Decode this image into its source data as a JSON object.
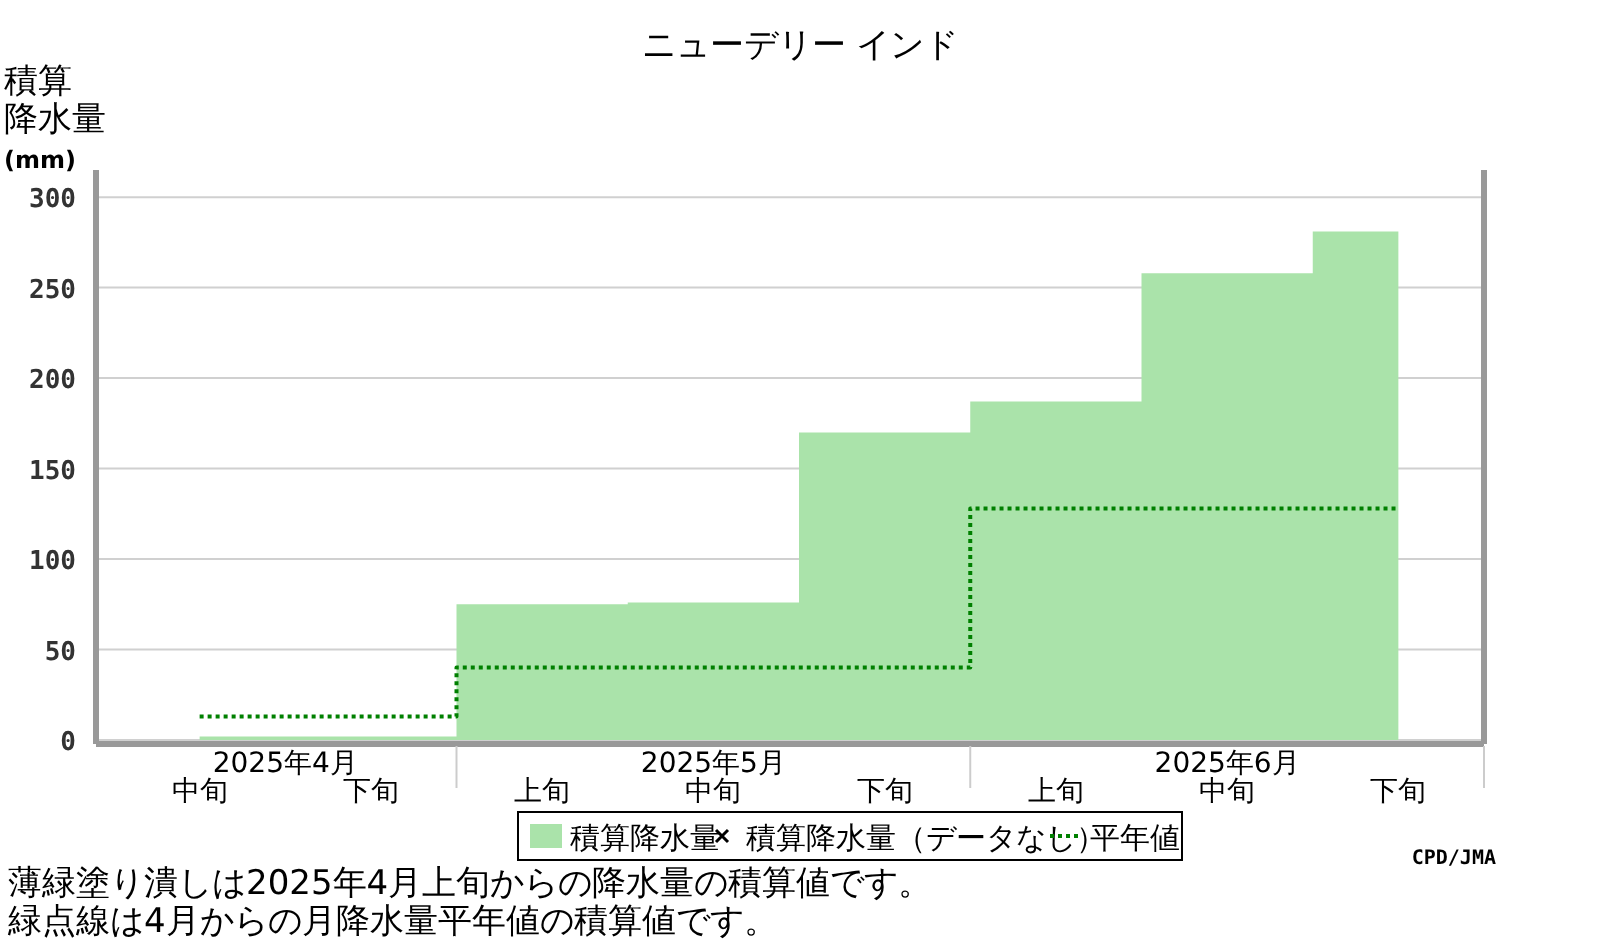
{
  "chart_data": {
    "type": "step",
    "title": "ニューデリー インド",
    "ylabel": "積算降水量(mm)",
    "categories": [
      "中旬",
      "下旬",
      "上旬",
      "中旬",
      "下旬",
      "上旬",
      "中旬",
      "下旬"
    ],
    "series": [
      {
        "name": "積算降水量",
        "type": "area",
        "color": "#aae3aa",
        "values": [
          2,
          2,
          75,
          76,
          170,
          187,
          258,
          281
        ]
      },
      {
        "name": "積算降水量（データなし）",
        "type": "scatter",
        "marker": "cross",
        "color": "#000000",
        "values": [
          null,
          null,
          null,
          null,
          null,
          null,
          null,
          null
        ]
      },
      {
        "name": "平年値",
        "line_style": "dotted",
        "color": "#008000",
        "values": [
          13,
          13,
          40,
          40,
          40,
          128,
          128,
          128
        ]
      }
    ],
    "ylim": [
      0,
      315
    ],
    "yticks": [
      0,
      50,
      100,
      150,
      200,
      250,
      300
    ],
    "grid": "y",
    "legend": "bottom",
    "annotations": [
      "2025年4月",
      "2025年5月",
      "2025年6月",
      "薄緑塗り潰しは2025年4月上旬からの降水量の積算値です。",
      "緑点線は4月からの月降水量平年値の積算値です。",
      "CPD/JMA"
    ]
  }
}
